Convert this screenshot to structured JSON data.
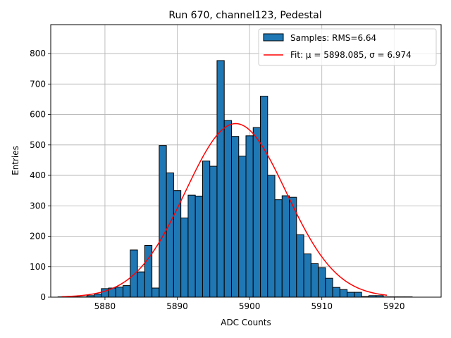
{
  "chart_data": {
    "type": "bar",
    "title": "Run 670, channel123, Pedestal",
    "xlabel": "ADC Counts",
    "ylabel": "Entries",
    "xlim": [
      5872.5,
      5926.5
    ],
    "ylim": [
      0,
      895
    ],
    "xticks": [
      5880,
      5890,
      5900,
      5910,
      5920
    ],
    "yticks": [
      0,
      100,
      200,
      300,
      400,
      500,
      600,
      700,
      800
    ],
    "grid": true,
    "legend_position": "top-right",
    "bin_width": 1,
    "bins": [
      {
        "x": 5874,
        "y": 1
      },
      {
        "x": 5875,
        "y": 1
      },
      {
        "x": 5876,
        "y": 1
      },
      {
        "x": 5877,
        "y": 1
      },
      {
        "x": 5878,
        "y": 5
      },
      {
        "x": 5879,
        "y": 10
      },
      {
        "x": 5880,
        "y": 28
      },
      {
        "x": 5881,
        "y": 30
      },
      {
        "x": 5882,
        "y": 33
      },
      {
        "x": 5883,
        "y": 38
      },
      {
        "x": 5884,
        "y": 155
      },
      {
        "x": 5885,
        "y": 83
      },
      {
        "x": 5886,
        "y": 170
      },
      {
        "x": 5887,
        "y": 30
      },
      {
        "x": 5888,
        "y": 498
      },
      {
        "x": 5889,
        "y": 408
      },
      {
        "x": 5890,
        "y": 350
      },
      {
        "x": 5891,
        "y": 260
      },
      {
        "x": 5892,
        "y": 335
      },
      {
        "x": 5893,
        "y": 332
      },
      {
        "x": 5894,
        "y": 447
      },
      {
        "x": 5895,
        "y": 430
      },
      {
        "x": 5896,
        "y": 777
      },
      {
        "x": 5897,
        "y": 580
      },
      {
        "x": 5898,
        "y": 528
      },
      {
        "x": 5899,
        "y": 463
      },
      {
        "x": 5900,
        "y": 530
      },
      {
        "x": 5901,
        "y": 557
      },
      {
        "x": 5902,
        "y": 660
      },
      {
        "x": 5903,
        "y": 400
      },
      {
        "x": 5904,
        "y": 320
      },
      {
        "x": 5905,
        "y": 333
      },
      {
        "x": 5906,
        "y": 328
      },
      {
        "x": 5907,
        "y": 205
      },
      {
        "x": 5908,
        "y": 142
      },
      {
        "x": 5909,
        "y": 110
      },
      {
        "x": 5910,
        "y": 97
      },
      {
        "x": 5911,
        "y": 62
      },
      {
        "x": 5912,
        "y": 32
      },
      {
        "x": 5913,
        "y": 25
      },
      {
        "x": 5914,
        "y": 16
      },
      {
        "x": 5915,
        "y": 16
      },
      {
        "x": 5916,
        "y": 2
      },
      {
        "x": 5917,
        "y": 5
      },
      {
        "x": 5918,
        "y": 5
      },
      {
        "x": 5919,
        "y": 1
      },
      {
        "x": 5920,
        "y": 1
      },
      {
        "x": 5921,
        "y": 1
      },
      {
        "x": 5922,
        "y": 1
      }
    ],
    "fit": {
      "mu": 5898.085,
      "sigma": 6.974,
      "amplitude": 570,
      "x_range": [
        5874,
        5919
      ]
    },
    "series": [
      {
        "name": "Samples: RMS=6.64",
        "kind": "histogram",
        "color": "#1f77b4"
      },
      {
        "name": "Fit: μ = 5898.085, σ = 6.974",
        "kind": "line",
        "color": "#ff0000"
      }
    ]
  }
}
